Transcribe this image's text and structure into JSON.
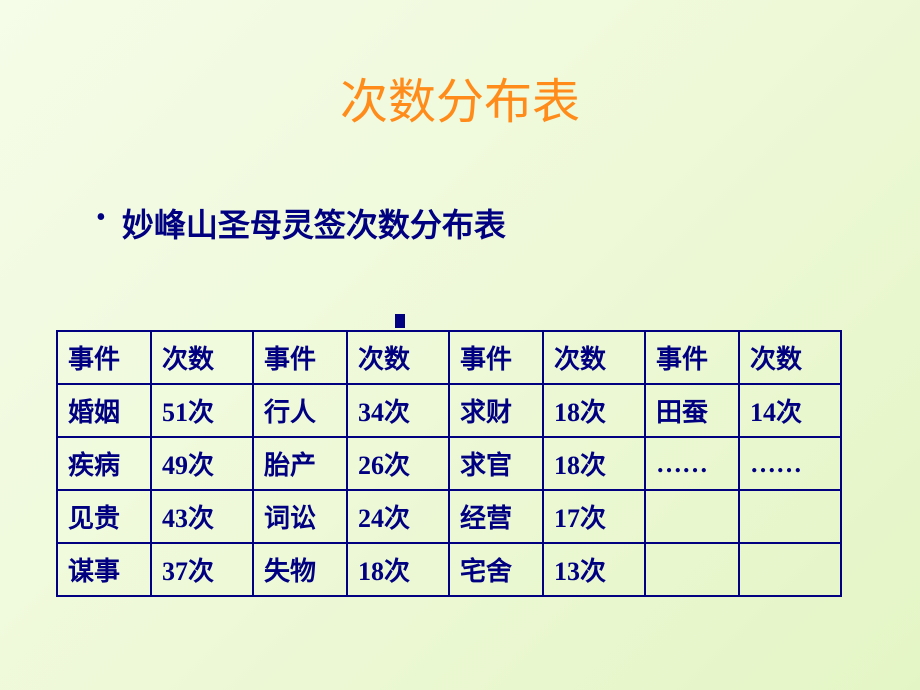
{
  "title": "次数分布表",
  "subtitle": "妙峰山圣母灵签次数分布表",
  "colors": {
    "title_color": "#ff8c1a",
    "text_color": "#000080",
    "border_color": "#000080",
    "bg_gradient_start": "#f5fce8",
    "bg_gradient_end": "#e4f5c5"
  },
  "typography": {
    "title_fontsize": 48,
    "subtitle_fontsize": 32,
    "cell_fontsize": 26,
    "font_family": "SimSun"
  },
  "table": {
    "headers": {
      "event": "事件",
      "count": "次数"
    },
    "rows": [
      [
        {
          "event": "婚姻",
          "count": "51次"
        },
        {
          "event": "行人",
          "count": "34次"
        },
        {
          "event": "求财",
          "count": "18次"
        },
        {
          "event": "田蚕",
          "count": "14次"
        }
      ],
      [
        {
          "event": "疾病",
          "count": "49次"
        },
        {
          "event": "胎产",
          "count": "26次"
        },
        {
          "event": "求官",
          "count": "18次"
        },
        {
          "event": "……",
          "count": "……"
        }
      ],
      [
        {
          "event": "见贵",
          "count": "43次"
        },
        {
          "event": "词讼",
          "count": "24次"
        },
        {
          "event": "经营",
          "count": "17次"
        },
        {
          "event": "",
          "count": ""
        }
      ],
      [
        {
          "event": "谋事",
          "count": "37次"
        },
        {
          "event": "失物",
          "count": "18次"
        },
        {
          "event": "宅舍",
          "count": "13次"
        },
        {
          "event": "",
          "count": ""
        }
      ]
    ]
  }
}
